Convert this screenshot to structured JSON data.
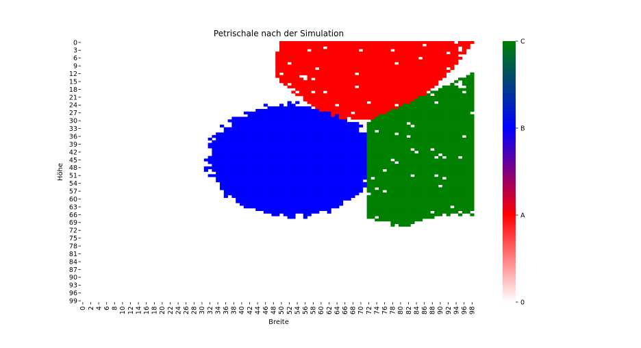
{
  "chart_data": {
    "type": "heatmap",
    "title": "Petrischale nach der Simulation",
    "xlabel": "Breite",
    "ylabel": "Höhe",
    "grid_size": [
      100,
      100
    ],
    "x_ticks": [
      0,
      2,
      4,
      6,
      8,
      10,
      12,
      14,
      16,
      18,
      20,
      22,
      24,
      26,
      28,
      30,
      32,
      34,
      36,
      38,
      40,
      42,
      44,
      46,
      48,
      50,
      52,
      54,
      56,
      58,
      60,
      62,
      64,
      66,
      68,
      70,
      72,
      74,
      76,
      78,
      80,
      82,
      84,
      86,
      88,
      90,
      92,
      94,
      96,
      98
    ],
    "y_ticks": [
      0,
      3,
      6,
      9,
      12,
      15,
      18,
      21,
      24,
      27,
      30,
      33,
      36,
      39,
      42,
      45,
      48,
      51,
      54,
      57,
      60,
      63,
      66,
      69,
      72,
      75,
      78,
      81,
      84,
      87,
      90,
      93,
      96,
      99
    ],
    "colorbar": {
      "ticks": [
        {
          "value": 0,
          "label": "0"
        },
        {
          "value": 1,
          "label": "A"
        },
        {
          "value": 2,
          "label": "B"
        },
        {
          "value": 3,
          "label": "C"
        }
      ],
      "range": [
        0,
        3
      ],
      "stops": [
        "#ffffff",
        "#ff0000",
        "#0000ff",
        "#008000"
      ]
    },
    "colonies": [
      {
        "name": "A",
        "value": 1,
        "color": "#ff0000",
        "extent_rows": [
          0,
          30
        ],
        "extent_cols": [
          48,
          99
        ]
      },
      {
        "name": "B",
        "value": 2,
        "color": "#0000ff",
        "extent_rows": [
          23,
          67
        ],
        "extent_cols": [
          30,
          74
        ]
      },
      {
        "name": "C",
        "value": 3,
        "color": "#008000",
        "extent_rows": [
          12,
          71
        ],
        "extent_cols": [
          72,
          99
        ]
      }
    ]
  }
}
